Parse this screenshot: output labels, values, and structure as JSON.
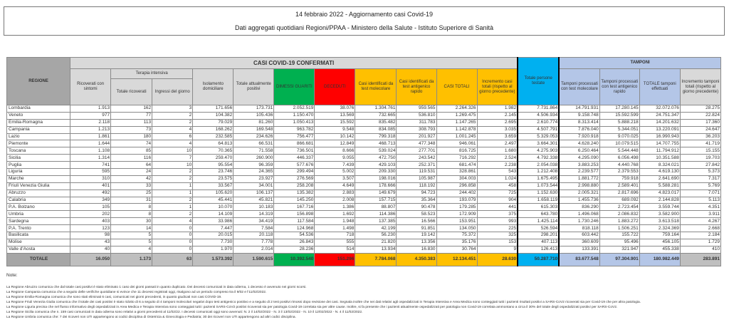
{
  "title": {
    "line1": "14 febbraio 2022 - Aggiornamento casi Covid-19",
    "line2": "Dati aggregati quotidiani Regioni/PPAA - Ministero della Salute - Istituto Superiore di Sanità"
  },
  "colors": {
    "header_gray": "#d9d9d9",
    "regione": "#a6a6a6",
    "dimessi": "#00b050",
    "deceduti": "#ff0000",
    "casi": "#ffc000",
    "persone": "#00b0f0",
    "tamponi": "#b4c6e7"
  },
  "header": {
    "regione": "REGIONE",
    "casi_group": "CASI COVID-19 CONFERMATI",
    "tamponi_group": "TAMPONI",
    "terapia_intensiva": "Terapia intensiva",
    "columns": [
      "Ricoverati con sintomi",
      "Totale ricoverati",
      "Ingressi del giorno",
      "Isolamento domiciliare",
      "Totale attualmente positivi",
      "DIMESSI GUARITI",
      "DECEDUTI",
      "Casi identificati da test molecolare",
      "Casi identificati da test antigenico rapido",
      "CASI TOTALI",
      "Incremento casi totali (rispetto al giorno precedente)",
      "Totale persone testate",
      "Tamponi processati con test molecolare",
      "Tamponi processati con test antigenico rapido",
      "TOTALE tamponi effettuati",
      "Incremento tamponi totali (rispetto al giorno precedente)"
    ]
  },
  "rows": [
    [
      "Lombardia",
      "1.913",
      "162",
      "3",
      "171.656",
      "173.731",
      "2.052.519",
      "38.076",
      "1.304.761",
      "959.565",
      "2.264.326",
      "1.982",
      "7.731.864",
      "14.791.931",
      "17.280.145",
      "32.072.076",
      "28.275"
    ],
    [
      "Veneto",
      "977",
      "77",
      "2",
      "104.382",
      "105.436",
      "1.150.470",
      "13.569",
      "732.665",
      "536.810",
      "1.269.475",
      "2.145",
      "4.506.934",
      "9.158.748",
      "15.592.599",
      "24.751.347",
      "22.824"
    ],
    [
      "Emilia-Romagna",
      "2.118",
      "113",
      "2",
      "79.029",
      "81.260",
      "1.050.413",
      "15.592",
      "835.482",
      "311.783",
      "1.147.265",
      "2.695",
      "2.610.774",
      "8.313.414",
      "5.888.218",
      "14.201.632",
      "17.360"
    ],
    [
      "Campania",
      "1.213",
      "73",
      "4",
      "168.262",
      "169.548",
      "963.782",
      "9.548",
      "834.085",
      "308.793",
      "1.142.878",
      "3.035",
      "4.507.791",
      "7.876.040",
      "5.344.051",
      "13.220.091",
      "24.647"
    ],
    [
      "Lazio",
      "1.861",
      "180",
      "6",
      "232.585",
      "234.626",
      "756.477",
      "10.142",
      "799.318",
      "201.927",
      "1.001.245",
      "3.659",
      "5.329.053",
      "7.920.918",
      "9.070.025",
      "16.990.943",
      "36.203"
    ],
    [
      "Piemonte",
      "1.644",
      "74",
      "4",
      "64.813",
      "66.531",
      "866.681",
      "12.849",
      "468.713",
      "477.348",
      "946.061",
      "2.497",
      "3.664.301",
      "4.628.240",
      "10.079.515",
      "14.707.755",
      "41.719"
    ],
    [
      "Toscana",
      "1.108",
      "85",
      "10",
      "70.365",
      "71.558",
      "736.501",
      "8.666",
      "539.024",
      "277.701",
      "816.725",
      "1.680",
      "4.275.903",
      "6.250.464",
      "5.544.448",
      "11.794.912",
      "15.155"
    ],
    [
      "Sicilia",
      "1.314",
      "116",
      "7",
      "259.470",
      "260.900",
      "446.337",
      "9.055",
      "472.750",
      "243.542",
      "716.292",
      "2.524",
      "4.792.338",
      "4.295.090",
      "6.056.498",
      "10.351.588",
      "19.703"
    ],
    [
      "Puglia",
      "741",
      "64",
      "10",
      "95.554",
      "96.359",
      "577.676",
      "7.439",
      "429.103",
      "252.371",
      "681.474",
      "2.238",
      "2.054.038",
      "3.883.253",
      "4.440.768",
      "8.324.021",
      "27.842"
    ],
    [
      "Liguria",
      "595",
      "24",
      "2",
      "23.746",
      "24.365",
      "299.494",
      "5.002",
      "209.330",
      "119.531",
      "328.861",
      "543",
      "1.212.408",
      "2.239.577",
      "2.379.553",
      "4.619.130",
      "5.373"
    ],
    [
      "Marche",
      "310",
      "42",
      "2",
      "23.575",
      "23.927",
      "276.569",
      "3.507",
      "198.016",
      "105.987",
      "304.003",
      "1.024",
      "1.675.495",
      "1.881.772",
      "759.918",
      "2.641.690",
      "7.317"
    ],
    [
      "Friuli Venezia Giulia",
      "401",
      "33",
      "1",
      "33.567",
      "34.001",
      "258.208",
      "4.649",
      "178.666",
      "118.192",
      "296.858",
      "458",
      "1.073.544",
      "2.998.880",
      "2.589.401",
      "5.588.281",
      "5.769"
    ],
    [
      "Abruzzo",
      "492",
      "25",
      "1",
      "105.620",
      "106.137",
      "135.382",
      "2.883",
      "149.679",
      "94.723",
      "244.402",
      "725",
      "1.152.630",
      "2.005.321",
      "2.817.696",
      "4.823.017",
      "7.071"
    ],
    [
      "Calabria",
      "349",
      "31",
      "2",
      "45.441",
      "45.821",
      "145.250",
      "2.008",
      "157.715",
      "35.364",
      "193.079",
      "904",
      "1.658.119",
      "1.455.736",
      "689.092",
      "2.144.828",
      "5.113"
    ],
    [
      "P.A. Bolzano",
      "105",
      "8",
      "1",
      "10.070",
      "10.183",
      "167.716",
      "1.386",
      "88.807",
      "90.478",
      "179.285",
      "441",
      "615.303",
      "836.290",
      "2.723.454",
      "3.559.744",
      "4.351"
    ],
    [
      "Umbria",
      "202",
      "8",
      "2",
      "14.109",
      "14.319",
      "156.898",
      "1.692",
      "114.386",
      "58.523",
      "172.909",
      "375",
      "643.780",
      "1.496.068",
      "2.086.832",
      "3.582.900",
      "3.911"
    ],
    [
      "Sardegna",
      "403",
      "30",
      "4",
      "33.986",
      "34.419",
      "117.584",
      "1.948",
      "137.385",
      "16.566",
      "153.951",
      "993",
      "1.425.114",
      "1.730.246",
      "1.883.272",
      "3.613.518",
      "4.267"
    ],
    [
      "P.A. Trento",
      "123",
      "14",
      "0",
      "7.447",
      "7.584",
      "124.968",
      "1.498",
      "42.199",
      "91.851",
      "134.050",
      "225",
      "526.594",
      "818.118",
      "1.506.251",
      "2.324.369",
      "2.668"
    ],
    [
      "Basilicata",
      "98",
      "5",
      "0",
      "20.015",
      "20.118",
      "54.536",
      "718",
      "56.230",
      "19.142",
      "75.372",
      "325",
      "298.201",
      "603.442",
      "155.722",
      "759.164",
      "2.184"
    ],
    [
      "Molise",
      "43",
      "5",
      "0",
      "7.730",
      "7.778",
      "26.843",
      "555",
      "21.820",
      "13.356",
      "35.176",
      "153",
      "407.113",
      "360.609",
      "95.496",
      "456.105",
      "1.729"
    ],
    [
      "Valle d'Aosta",
      "40",
      "4",
      "0",
      "1.970",
      "2.014",
      "28.236",
      "514",
      "13.934",
      "16.830",
      "30.764",
      "9",
      "126.413",
      "133.391",
      "321.947",
      "455.338",
      "410"
    ]
  ],
  "total": [
    "TOTALE",
    "16.050",
    "1.173",
    "63",
    "1.573.392",
    "1.590.615",
    "10.392.540",
    "151.296",
    "7.784.068",
    "4.350.383",
    "12.134.451",
    "28.630",
    "50.287.710",
    "83.677.548",
    "97.304.901",
    "180.982.449",
    "283.891"
  ],
  "notes": {
    "label": "Note:",
    "lines": [
      "La Regione Abruzzo comunica che dal totale casi positivi è stato eliminato 1 caso dei giorni passati in quanto duplicato. Dei decessi comunicati in data odierna, 1 decesso è avvenuto nei giorni scorsi.",
      "La Regione Campania comunica che a seguito delle verifiche quotidiane si evince che 11 decessi registrati oggi, risalgono ad un periodo compreso tra il 9/02 e l'11/02/2022.",
      "La Regione Emilia-Romagna comunica che sono stati eliminati 6 casi, comunicati nei giorni precedenti, in quanto giudicati non casi COVID-19.",
      "La Regione Friuli Venezia Giulia comunica che il totale dei casi positivi è stato ridotto di 6 a seguito di 4 tamponi molecolari negativi dopo test antigenico positivo e a seguito di 2 test positivi rimossi dopo revisione dei casi. Segnala inoltre che nei dati relativi agli ospedalizzati in Terapia Intensiva e Area Medica sono conteggiati tutti i pazienti risultati positivi a SARS-CoV2 ricoverati sia per Covid-19 che per altra patologia.",
      "La Regione Liguria precisa che nel flusso informativo degli ospedalizzati in Area Medica e Terapia Intensiva sono conteggiati tutti i pazienti SARS-CoV2 positivi ricoverati sia per patologia Covid-19 correlata sia per altre cause. Inoltre, si fa presente che i pazienti attualmente ospedalizzati per patologia non Covid-19 correlata ammontano a circa il 30% del totale degli ospedalizzati positivi per SARS-CoV2.",
      "La Regione Sicilia comunica che n. 159 casi comunicati in data odierna sono relativi a giorni precedenti al 11/02/22. I decessi comunicati oggi sono avvenuti: N. 2 il 14/02/2022 - N. 3 il 13/02/2022 - N. 10 il 12/02/2022 - N. 4 il 11/02/2022.",
      "La Regione Umbria comunica che: 7 dei ricoveri non UTI appartengono ai codici disciplina di Ostetricia & Ginecologia e Pediatria; 30 dei ricoveri non UTI appartengono ad altri codici disciplina."
    ]
  }
}
